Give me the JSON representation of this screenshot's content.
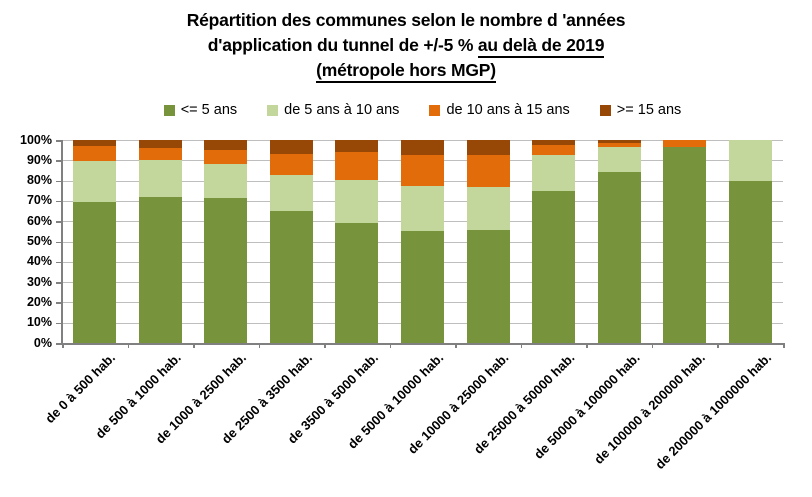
{
  "title": {
    "line1": "Répartition des communes selon le nombre d 'années",
    "line2_normal": "d'application du tunnel de +/-5 % ",
    "line2_underline": "au delà de 2019",
    "line3_underline": "(métropole hors MGP)"
  },
  "colors": {
    "background": "#FFFFFF",
    "text": "#000000",
    "gridline": "#BEBEBE",
    "axis": "#808080",
    "series_dark_green": "#77933C",
    "series_light_green": "#C3D69B",
    "series_orange": "#E36C0A",
    "series_brown": "#974706"
  },
  "chart_data": {
    "type": "bar",
    "stacked": true,
    "units": "percent",
    "title": "Répartition des communes selon le nombre d 'années d'application du tunnel de +/-5 % au delà de 2019 (métropole hors MGP)",
    "categories": [
      "de 0 à 500 hab.",
      "de 500 à 1000 hab.",
      "de 1000 à 2500 hab.",
      "de 2500 à 3500 hab.",
      "de 3500 à 5000 hab.",
      "de 5000 à 10000 hab.",
      "de 10000 à 25000 hab.",
      "de 25000 à 50000 hab.",
      "de 50000 à 100000 hab.",
      "de 100000 à 200000 hab.",
      "de 200000 à 1000000 hab."
    ],
    "series": [
      {
        "name": "<= 5 ans",
        "color": "#77933C",
        "values": [
          69.5,
          72,
          71.5,
          65,
          59,
          55,
          55.5,
          75,
          84,
          96.5,
          80
        ]
      },
      {
        "name": "de 5 ans à 10 ans",
        "color": "#C3D69B",
        "values": [
          20,
          18,
          16.5,
          18,
          21.5,
          22.5,
          21.5,
          17.5,
          12.5,
          0,
          20
        ]
      },
      {
        "name": "de 10 ans à 15 ans",
        "color": "#E36C0A",
        "values": [
          7.5,
          6,
          7,
          10,
          13.5,
          15,
          15.5,
          5,
          2,
          3.5,
          0
        ]
      },
      {
        "name": ">= 15 ans",
        "color": "#974706",
        "values": [
          3,
          4,
          5,
          7,
          6,
          7.5,
          7.5,
          2.5,
          1.5,
          0,
          0
        ]
      }
    ],
    "xlabel": "",
    "ylabel": "",
    "ylim": [
      0,
      100
    ],
    "y_tick_labels": [
      "0%",
      "10%",
      "20%",
      "30%",
      "40%",
      "50%",
      "60%",
      "70%",
      "80%",
      "90%",
      "100%"
    ],
    "grid": true,
    "legend_position": "top"
  }
}
